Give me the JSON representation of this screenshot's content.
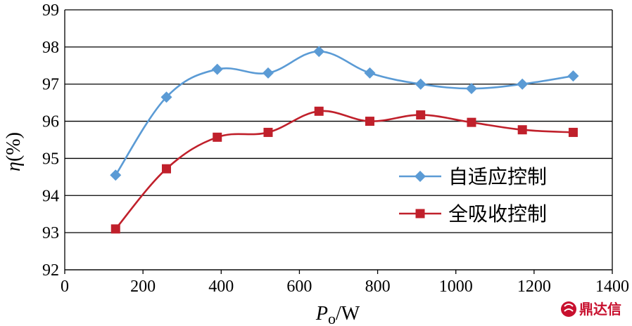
{
  "chart_data": {
    "type": "line",
    "title": "",
    "x_label": {
      "main": "P",
      "sub": "o",
      "unit": "/W"
    },
    "y_label": {
      "main": "η",
      "unit": "(%)"
    },
    "xlim": [
      0,
      1400
    ],
    "ylim": [
      92,
      99
    ],
    "x_ticks": [
      0,
      200,
      400,
      600,
      800,
      1000,
      1200,
      1400
    ],
    "y_ticks": [
      92,
      93,
      94,
      95,
      96,
      97,
      98,
      99
    ],
    "grid": "horizontal",
    "legend_position": "bottom-right",
    "series": [
      {
        "name": "自适应控制",
        "color": "#5b9bd5",
        "marker": "diamond",
        "x": [
          130,
          260,
          390,
          520,
          650,
          780,
          910,
          1040,
          1170,
          1300
        ],
        "y": [
          94.55,
          96.65,
          97.4,
          97.3,
          97.88,
          97.3,
          97.0,
          96.88,
          97.0,
          97.22
        ]
      },
      {
        "name": "全吸收控制",
        "color": "#c0202b",
        "marker": "square",
        "x": [
          130,
          260,
          390,
          520,
          650,
          780,
          910,
          1040,
          1170,
          1300
        ],
        "y": [
          93.1,
          94.72,
          95.57,
          95.7,
          96.27,
          96.0,
          96.17,
          95.97,
          95.77,
          95.7
        ]
      }
    ]
  },
  "watermark": {
    "text": "鼎达信",
    "color": "#c8102e"
  }
}
